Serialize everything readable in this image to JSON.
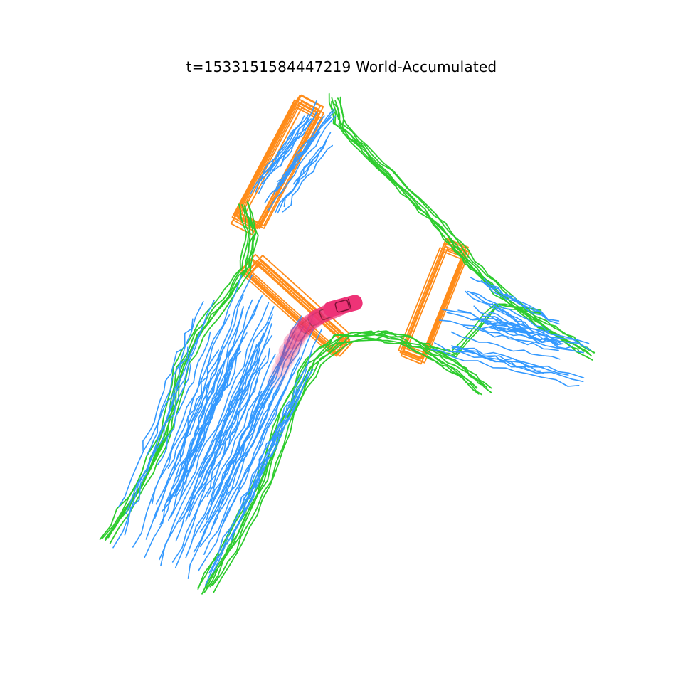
{
  "figure": {
    "title": "t=1533151584447219  World-Accumulated"
  },
  "colors": {
    "divider": "#2ecc2e",
    "lane": "#3399ff",
    "crosswalk": "#ff8c1a",
    "ego_vehicle": "#ee3377",
    "background": "#ffffff"
  },
  "layers": [
    "lane-dividers",
    "road-boundaries",
    "crosswalks",
    "ego-vehicle"
  ]
}
